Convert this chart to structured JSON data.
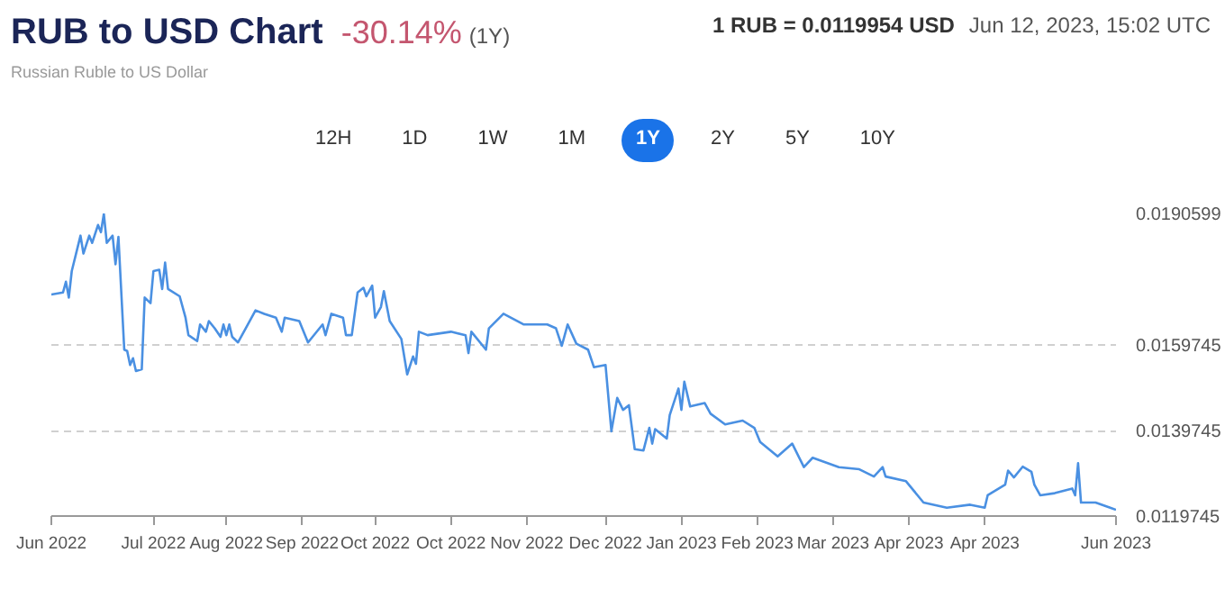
{
  "chart_data": {
    "type": "line",
    "title": "RUB to USD Chart",
    "subtitle": "Russian Ruble to US Dollar",
    "annotations": [
      "-30.14%",
      "(1Y)",
      "1 RUB = 0.0119954 USD",
      "Jun 12, 2023, 15:02 UTC",
      "12H",
      "1D",
      "1W",
      "1M",
      "1Y",
      "2Y",
      "5Y",
      "10Y"
    ],
    "x": [
      "2022-06-12",
      "2022-06-16",
      "2022-06-17",
      "2022-06-18",
      "2022-06-19",
      "2022-06-22",
      "2022-06-23",
      "2022-06-25",
      "2022-06-26",
      "2022-06-28",
      "2022-06-29",
      "2022-06-30",
      "2022-07-01",
      "2022-07-03",
      "2022-07-04",
      "2022-07-05",
      "2022-07-07",
      "2022-07-08",
      "2022-07-09",
      "2022-07-10",
      "2022-07-11",
      "2022-07-13",
      "2022-07-14",
      "2022-07-16",
      "2022-07-17",
      "2022-07-19",
      "2022-07-20",
      "2022-07-21",
      "2022-07-22",
      "2022-07-26",
      "2022-07-28",
      "2022-07-29",
      "2022-08-01",
      "2022-08-02",
      "2022-08-04",
      "2022-08-05",
      "2022-08-07",
      "2022-08-09",
      "2022-08-10",
      "2022-08-11",
      "2022-08-12",
      "2022-08-13",
      "2022-08-15",
      "2022-08-17",
      "2022-08-21",
      "2022-08-24",
      "2022-08-28",
      "2022-08-30",
      "2022-08-31",
      "2022-09-05",
      "2022-09-08",
      "2022-09-13",
      "2022-09-14",
      "2022-09-16",
      "2022-09-20",
      "2022-09-21",
      "2022-09-23",
      "2022-09-25",
      "2022-09-27",
      "2022-09-28",
      "2022-09-30",
      "2022-10-01",
      "2022-10-03",
      "2022-10-04",
      "2022-10-06",
      "2022-10-10",
      "2022-10-12",
      "2022-10-14",
      "2022-10-15",
      "2022-10-16",
      "2022-10-19",
      "2022-10-27",
      "2022-11-01",
      "2022-11-02",
      "2022-11-03",
      "2022-11-08",
      "2022-11-09",
      "2022-11-14",
      "2022-11-21",
      "2022-11-29",
      "2022-12-02",
      "2022-12-04",
      "2022-12-06",
      "2022-12-09",
      "2022-12-13",
      "2022-12-15",
      "2022-12-19",
      "2022-12-21",
      "2022-12-23",
      "2022-12-25",
      "2022-12-27",
      "2022-12-29",
      "2023-01-01",
      "2023-01-03",
      "2023-01-04",
      "2023-01-05",
      "2023-01-09",
      "2023-01-10",
      "2023-01-13",
      "2023-01-14",
      "2023-01-15",
      "2023-01-17",
      "2023-01-22",
      "2023-01-24",
      "2023-01-29",
      "2023-02-04",
      "2023-02-08",
      "2023-02-10",
      "2023-02-13",
      "2023-02-16",
      "2023-02-21",
      "2023-02-25",
      "2023-02-28",
      "2023-03-09",
      "2023-03-16",
      "2023-03-21",
      "2023-03-24",
      "2023-03-25",
      "2023-04-01",
      "2023-04-07",
      "2023-04-15",
      "2023-04-23",
      "2023-04-28",
      "2023-04-29",
      "2023-05-05",
      "2023-05-06",
      "2023-05-08",
      "2023-05-11",
      "2023-05-14",
      "2023-05-15",
      "2023-05-17",
      "2023-05-22",
      "2023-05-28",
      "2023-05-29",
      "2023-05-30",
      "2023-05-31",
      "2023-06-05",
      "2023-06-10",
      "2023-06-12"
    ],
    "series": [
      {
        "color": "#4a90e2",
        "values": [
          0.01716,
          0.01721,
          0.01746,
          0.01709,
          0.01771,
          0.01854,
          0.01812,
          0.01854,
          0.01837,
          0.01879,
          0.01862,
          0.01905,
          0.01837,
          0.01854,
          0.01787,
          0.01851,
          0.01587,
          0.01584,
          0.01551,
          0.01567,
          0.01537,
          0.01541,
          0.01709,
          0.01696,
          0.01771,
          0.01774,
          0.01729,
          0.01791,
          0.01729,
          0.01712,
          0.01662,
          0.01621,
          0.01607,
          0.01646,
          0.01629,
          0.01654,
          0.01637,
          0.01617,
          0.01646,
          0.01621,
          0.01646,
          0.01617,
          0.01604,
          0.01629,
          0.01679,
          0.01671,
          0.01662,
          0.01629,
          0.01662,
          0.01654,
          0.01604,
          0.01646,
          0.01621,
          0.01671,
          0.01662,
          0.01621,
          0.01621,
          0.01721,
          0.01732,
          0.01712,
          0.01737,
          0.01662,
          0.01687,
          0.01724,
          0.01654,
          0.01612,
          0.01529,
          0.01571,
          0.01554,
          0.01629,
          0.01621,
          0.01629,
          0.01621,
          0.01579,
          0.01629,
          0.01587,
          0.01637,
          0.01671,
          0.01646,
          0.01646,
          0.01637,
          0.01596,
          0.01646,
          0.01601,
          0.01587,
          0.01546,
          0.01551,
          0.01396,
          0.01474,
          0.01446,
          0.01457,
          0.01354,
          0.01351,
          0.01404,
          0.01367,
          0.01401,
          0.01379,
          0.01434,
          0.01496,
          0.01446,
          0.01512,
          0.01454,
          0.01462,
          0.01437,
          0.01412,
          0.01421,
          0.01404,
          0.01371,
          0.01354,
          0.01337,
          0.01367,
          0.01312,
          0.01334,
          0.01312,
          0.01307,
          0.0129,
          0.01312,
          0.0129,
          0.01279,
          0.01229,
          0.01217,
          0.01224,
          0.01217,
          0.01246,
          0.01271,
          0.01304,
          0.01288,
          0.01313,
          0.01301,
          0.01271,
          0.01246,
          0.01251,
          0.01262,
          0.01246,
          0.01321,
          0.01229,
          0.01229,
          0.01217,
          0.01212
        ]
      }
    ],
    "xlim": [
      "2022-06-12",
      "2023-06-12"
    ],
    "xticks": [
      {
        "value": "2022-06-12",
        "label": "Jun 2022"
      },
      {
        "value": "2022-07-17",
        "label": "Jul 2022"
      },
      {
        "value": "2022-08-11",
        "label": "Aug 2022"
      },
      {
        "value": "2022-09-06",
        "label": "Sep 2022"
      },
      {
        "value": "2022-10-01",
        "label": "Oct 2022"
      },
      {
        "value": "2022-10-27",
        "label": "Oct 2022"
      },
      {
        "value": "2022-11-22",
        "label": "Nov 2022"
      },
      {
        "value": "2022-12-19",
        "label": "Dec 2022"
      },
      {
        "value": "2023-01-14",
        "label": "Jan 2023"
      },
      {
        "value": "2023-02-09",
        "label": "Feb 2023"
      },
      {
        "value": "2023-03-07",
        "label": "Mar 2023"
      },
      {
        "value": "2023-04-02",
        "label": "Apr 2023"
      },
      {
        "value": "2023-04-28",
        "label": "Apr 2023"
      },
      {
        "value": "2023-06-12",
        "label": "Jun 2023"
      }
    ],
    "ylim": [
      0.0119745,
      0.0190599
    ],
    "yticks": [
      0.0119745,
      0.0139745,
      0.0159745,
      0.0190599
    ],
    "grid": "y"
  }
}
